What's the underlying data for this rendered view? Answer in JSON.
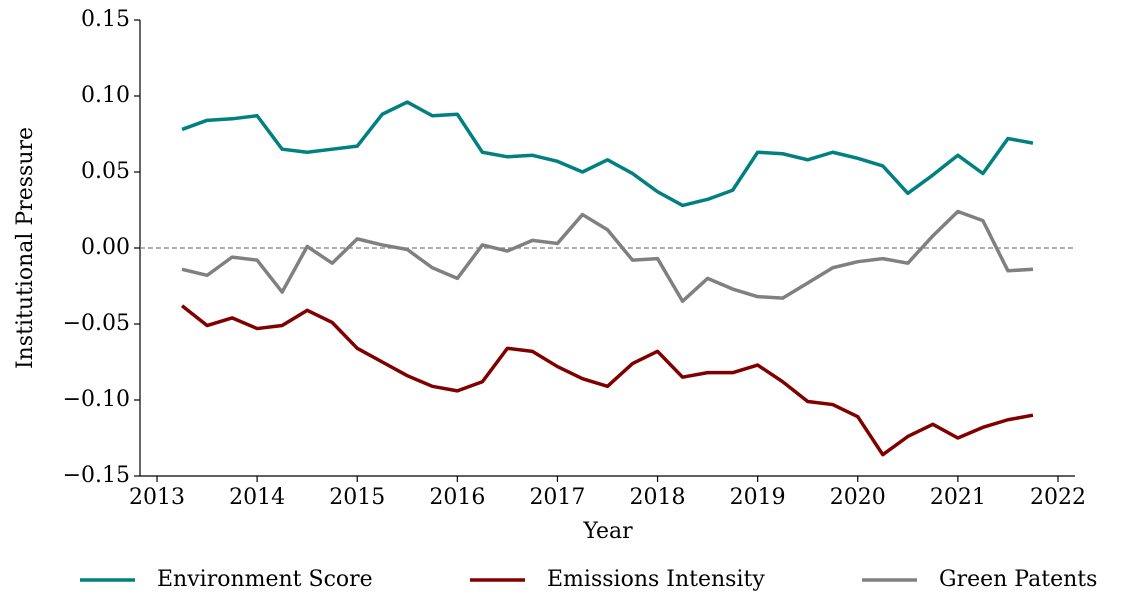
{
  "chart_data": {
    "type": "line",
    "x_label": "Year",
    "y_label": "Institutional Pressure",
    "x": [
      2013.25,
      2013.5,
      2013.75,
      2014,
      2014.25,
      2014.5,
      2014.75,
      2015,
      2015.25,
      2015.5,
      2015.75,
      2016,
      2016.25,
      2016.5,
      2016.75,
      2017,
      2017.25,
      2017.5,
      2017.75,
      2018,
      2018.25,
      2018.5,
      2018.75,
      2019,
      2019.25,
      2019.5,
      2019.75,
      2020,
      2020.25,
      2020.5,
      2020.75,
      2021,
      2021.25,
      2021.5,
      2021.75
    ],
    "series": [
      {
        "name": "Environment Score",
        "color": "#008080",
        "values": [
          0.078,
          0.084,
          0.085,
          0.087,
          0.065,
          0.063,
          0.065,
          0.067,
          0.088,
          0.096,
          0.087,
          0.088,
          0.063,
          0.06,
          0.061,
          0.057,
          0.05,
          0.058,
          0.049,
          0.037,
          0.028,
          0.032,
          0.038,
          0.063,
          0.062,
          0.058,
          0.063,
          0.059,
          0.054,
          0.036,
          0.048,
          0.061,
          0.049,
          0.072,
          0.069
        ]
      },
      {
        "name": "Emissions Intensity",
        "color": "#800000",
        "values": [
          -0.038,
          -0.051,
          -0.046,
          -0.053,
          -0.051,
          -0.041,
          -0.049,
          -0.066,
          -0.075,
          -0.084,
          -0.091,
          -0.094,
          -0.088,
          -0.066,
          -0.068,
          -0.078,
          -0.086,
          -0.091,
          -0.076,
          -0.068,
          -0.085,
          -0.082,
          -0.082,
          -0.077,
          -0.088,
          -0.101,
          -0.103,
          -0.111,
          -0.136,
          -0.124,
          -0.116,
          -0.125,
          -0.118,
          -0.113,
          -0.11
        ]
      },
      {
        "name": "Green Patents",
        "color": "#808080",
        "values": [
          -0.014,
          -0.018,
          -0.006,
          -0.008,
          -0.029,
          0.001,
          -0.01,
          0.006,
          0.002,
          -0.001,
          -0.013,
          -0.02,
          0.002,
          -0.002,
          0.005,
          0.003,
          0.022,
          0.012,
          -0.008,
          -0.007,
          -0.035,
          -0.02,
          -0.027,
          -0.032,
          -0.033,
          -0.023,
          -0.013,
          -0.009,
          -0.007,
          -0.01,
          0.008,
          0.024,
          0.018,
          -0.015,
          -0.014
        ]
      }
    ],
    "xlim": [
      2012.83,
      2022.17
    ],
    "xticks": [
      2013,
      2014,
      2015,
      2016,
      2017,
      2018,
      2019,
      2020,
      2021,
      2022
    ],
    "ylim": [
      -0.15,
      0.15
    ],
    "yticks": [
      {
        "value": -0.15,
        "label": "−0.15"
      },
      {
        "value": -0.1,
        "label": "−0.10"
      },
      {
        "value": -0.05,
        "label": "−0.05"
      },
      {
        "value": 0,
        "label": "0.00"
      },
      0.05,
      {
        "value": 0.1,
        "label": "0.10"
      },
      0.15
    ],
    "zero_line": true,
    "legend": "bottom"
  }
}
